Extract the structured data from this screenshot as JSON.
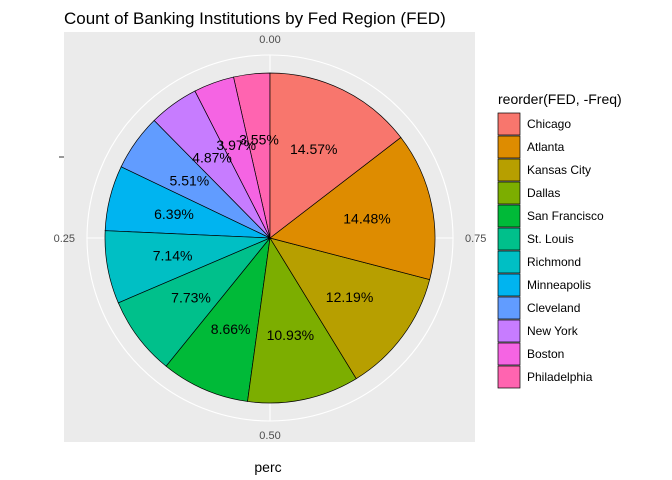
{
  "chart_data": {
    "type": "pie",
    "title": "Count of Banking Institutions by Fed Region (FED)",
    "xlabel": "perc",
    "ylabel": "",
    "theta_ticks": [
      {
        "value": 0.0,
        "label": "0.00"
      },
      {
        "value": 0.25,
        "label": "0.25"
      },
      {
        "value": 0.5,
        "label": "0.50"
      },
      {
        "value": 0.75,
        "label": "0.75"
      }
    ],
    "legend": {
      "title": "reorder(FED, -Freq)",
      "position": "right"
    },
    "grid": true,
    "slices": [
      {
        "name": "Chicago",
        "value": 14.57,
        "label": "14.57%",
        "color": "#F8766D"
      },
      {
        "name": "Atlanta",
        "value": 14.48,
        "label": "14.48%",
        "color": "#DE8C00"
      },
      {
        "name": "Kansas City",
        "value": 12.19,
        "label": "12.19%",
        "color": "#B79F00"
      },
      {
        "name": "Dallas",
        "value": 10.93,
        "label": "10.93%",
        "color": "#7CAE00"
      },
      {
        "name": "San Francisco",
        "value": 8.66,
        "label": "8.66%",
        "color": "#00BA38"
      },
      {
        "name": "St. Louis",
        "value": 7.73,
        "label": "7.73%",
        "color": "#00C08B"
      },
      {
        "name": "Richmond",
        "value": 7.14,
        "label": "7.14%",
        "color": "#00BFC4"
      },
      {
        "name": "Minneapolis",
        "value": 6.39,
        "label": "6.39%",
        "color": "#00B4F0"
      },
      {
        "name": "Cleveland",
        "value": 5.51,
        "label": "5.51%",
        "color": "#619CFF"
      },
      {
        "name": "New York",
        "value": 4.87,
        "label": "4.87%",
        "color": "#C77CFF"
      },
      {
        "name": "Boston",
        "value": 3.97,
        "label": "3.97%",
        "color": "#F564E3"
      },
      {
        "name": "Philadelphia",
        "value": 3.55,
        "label": "3.55%",
        "color": "#FF64B0"
      }
    ]
  }
}
